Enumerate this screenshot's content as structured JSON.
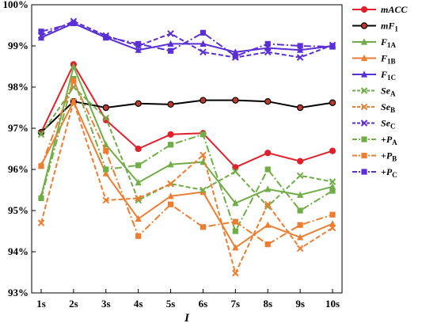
{
  "chart_data": {
    "type": "line",
    "xlabel": "I",
    "ylabel": "",
    "title": "",
    "x": [
      "1s",
      "2s",
      "3s",
      "4s",
      "5s",
      "6s",
      "7s",
      "8s",
      "9s",
      "10s"
    ],
    "ylim": [
      93,
      100
    ],
    "yticks": [
      "93%",
      "94%",
      "95%",
      "96%",
      "97%",
      "98%",
      "99%",
      "100%"
    ],
    "grid": false,
    "legend_position": "right",
    "series": [
      {
        "name": "mACC",
        "color": "#e0202a",
        "dash": "solid",
        "marker": "circle",
        "values": [
          96.9,
          98.55,
          97.2,
          96.5,
          96.85,
          96.88,
          96.05,
          96.4,
          96.2,
          96.45
        ]
      },
      {
        "name": "mF1",
        "color": "#000000",
        "dash": "solid",
        "marker": "circle-open",
        "values": [
          96.9,
          97.65,
          97.5,
          97.6,
          97.58,
          97.68,
          97.68,
          97.65,
          97.5,
          97.62
        ]
      },
      {
        "name": "F1A",
        "color": "#70ad47",
        "dash": "solid",
        "marker": "triangle",
        "values": [
          95.35,
          98.5,
          96.6,
          95.68,
          96.12,
          96.18,
          95.18,
          95.52,
          95.38,
          95.58
        ]
      },
      {
        "name": "F1B",
        "color": "#ed7d31",
        "dash": "solid",
        "marker": "triangle",
        "values": [
          96.1,
          97.65,
          95.9,
          94.8,
          95.35,
          95.45,
          94.1,
          94.65,
          94.35,
          94.68
        ]
      },
      {
        "name": "F1C",
        "color": "#5b2fd6",
        "dash": "solid",
        "marker": "triangle",
        "values": [
          99.2,
          99.55,
          99.2,
          98.9,
          99.05,
          99.05,
          98.85,
          98.95,
          98.9,
          99.0
        ]
      },
      {
        "name": "SeA",
        "color": "#70ad47",
        "dash": "6,3",
        "marker": "x",
        "values": [
          96.85,
          98.0,
          97.25,
          95.25,
          95.65,
          95.5,
          95.95,
          95.1,
          95.85,
          95.7
        ]
      },
      {
        "name": "SeB",
        "color": "#ed7d31",
        "dash": "6,3",
        "marker": "x",
        "values": [
          94.7,
          97.65,
          95.25,
          95.3,
          95.65,
          96.35,
          93.48,
          95.15,
          94.08,
          94.58
        ]
      },
      {
        "name": "SeC",
        "color": "#5b2fd6",
        "dash": "6,3",
        "marker": "x",
        "values": [
          99.25,
          99.6,
          99.25,
          99.0,
          99.3,
          98.85,
          98.72,
          98.85,
          98.72,
          99.02
        ]
      },
      {
        "name": "+PA",
        "color": "#70ad47",
        "dash": "9,3,2,3",
        "marker": "square",
        "values": [
          95.3,
          98.2,
          96.0,
          96.1,
          96.6,
          96.85,
          94.5,
          96.0,
          95.0,
          95.48
        ]
      },
      {
        "name": "+PB",
        "color": "#ed7d31",
        "dash": "9,3,2,3",
        "marker": "square",
        "values": [
          96.08,
          98.15,
          96.45,
          94.38,
          95.15,
          94.6,
          94.73,
          94.18,
          94.65,
          94.9
        ]
      },
      {
        "name": "+PC",
        "color": "#5b2fd6",
        "dash": "9,3,2,3",
        "marker": "square",
        "values": [
          99.35,
          99.55,
          99.22,
          99.05,
          98.88,
          99.32,
          98.75,
          99.05,
          99.0,
          98.98
        ]
      }
    ]
  },
  "legend_labels": [
    {
      "main": "mACC",
      "sub": ""
    },
    {
      "main": "mF",
      "sub": "1"
    },
    {
      "main": "F",
      "sub": "1A"
    },
    {
      "main": "F",
      "sub": "1B"
    },
    {
      "main": "F",
      "sub": "1C"
    },
    {
      "main": "Se",
      "sub": "A"
    },
    {
      "main": "Se",
      "sub": "B"
    },
    {
      "main": "Se",
      "sub": "C"
    },
    {
      "main": "+P",
      "sub": "A"
    },
    {
      "main": "+P",
      "sub": "B"
    },
    {
      "main": "+P",
      "sub": "C"
    }
  ]
}
